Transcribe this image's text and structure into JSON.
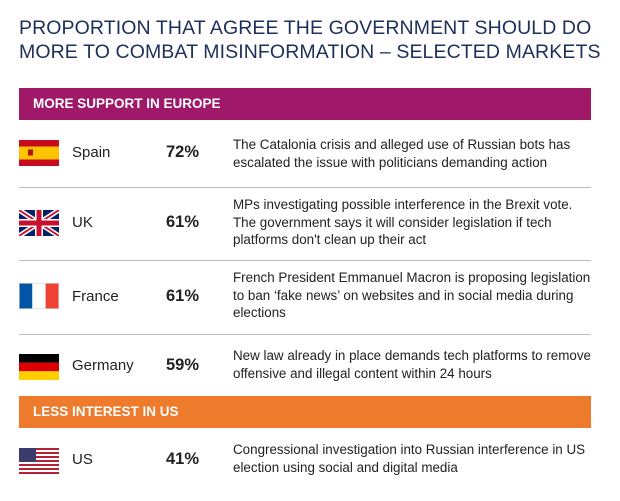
{
  "title": {
    "line1": "PROPORTION THAT AGREE THE GOVERNMENT SHOULD DO",
    "line2": "MORE TO COMBAT MISINFORMATION – SELECTED MARKETS"
  },
  "sections": {
    "europe": {
      "label": "MORE SUPPORT IN EUROPE",
      "color": "#a01868"
    },
    "us": {
      "label": "LESS INTEREST IN US",
      "color": "#ee7a2c"
    }
  },
  "rows": [
    {
      "flag": "spain-flag-icon",
      "country": "Spain",
      "value": "72%",
      "desc": "The Catalonia crisis and alleged use of Russian bots has escalated the issue with politicians demanding action"
    },
    {
      "flag": "uk-flag-icon",
      "country": "UK",
      "value": "61%",
      "desc": "MPs investigating possible interference in the Brexit vote. The government says it will consider legislation if tech platforms don't clean up their act"
    },
    {
      "flag": "france-flag-icon",
      "country": "France",
      "value": "61%",
      "desc": "French President Emmanuel Macron is proposing legislation to ban ‘fake news’ on websites and in social media during  elections"
    },
    {
      "flag": "germany-flag-icon",
      "country": "Germany",
      "value": "59%",
      "desc": "New law already in place demands tech platforms to remove offensive and illegal content within 24 hours"
    },
    {
      "flag": "us-flag-icon",
      "country": "US",
      "value": "41%",
      "desc": "Congressional investigation into Russian interference in US election using social and digital media"
    }
  ]
}
